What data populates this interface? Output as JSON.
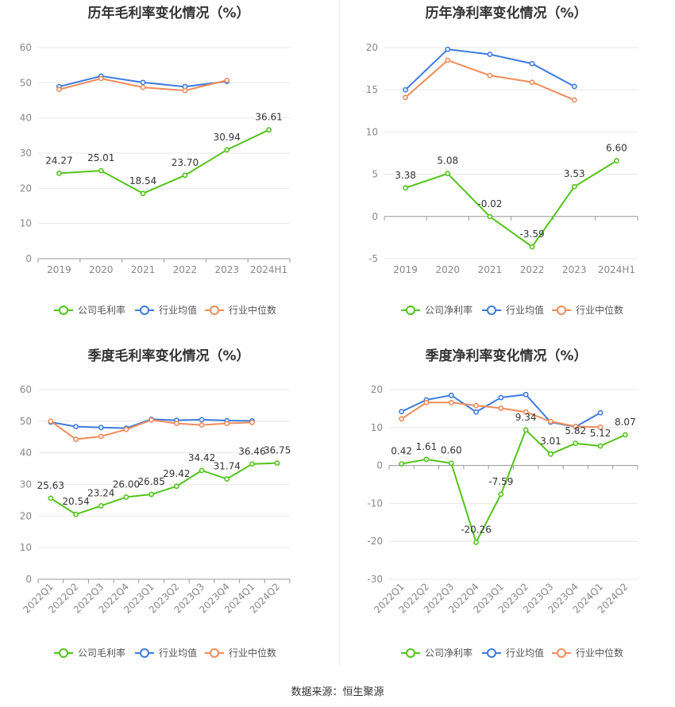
{
  "source": "数据来源：恒生聚源",
  "colors": {
    "company": "#52c41a",
    "industry_avg": "#3d7be0",
    "industry_median": "#f08c5a",
    "grid": "#e8e8e8",
    "axis": "#999999"
  },
  "chart_data": [
    {
      "type": "line",
      "title": "历年毛利率变化情况（%）",
      "categories": [
        "2019",
        "2020",
        "2021",
        "2022",
        "2023",
        "2024H1"
      ],
      "ylim": [
        0,
        60
      ],
      "yticks": [
        0,
        10,
        20,
        30,
        40,
        50,
        60
      ],
      "rotate_x": false,
      "grid": true,
      "legend_position": "bottom",
      "series": [
        {
          "name": "公司毛利率",
          "key": "company",
          "values": [
            24.27,
            25.01,
            18.54,
            23.7,
            30.94,
            36.61
          ],
          "labels": [
            "24.27",
            "25.01",
            "18.54",
            "23.70",
            "30.94",
            "36.61"
          ]
        },
        {
          "name": "行业均值",
          "key": "industry_avg",
          "values": [
            48.9,
            51.9,
            50.1,
            48.9,
            50.4,
            null
          ]
        },
        {
          "name": "行业中位数",
          "key": "industry_median",
          "values": [
            48.1,
            51.2,
            48.7,
            47.8,
            50.7,
            null
          ]
        }
      ]
    },
    {
      "type": "line",
      "title": "历年净利率变化情况（%）",
      "categories": [
        "2019",
        "2020",
        "2021",
        "2022",
        "2023",
        "2024H1"
      ],
      "ylim": [
        -5,
        20
      ],
      "yticks": [
        -5,
        0,
        5,
        10,
        15,
        20
      ],
      "rotate_x": false,
      "grid": true,
      "legend_position": "bottom",
      "series": [
        {
          "name": "公司净利率",
          "key": "company",
          "values": [
            3.38,
            5.08,
            -0.02,
            -3.59,
            3.53,
            6.6
          ],
          "labels": [
            "3.38",
            "5.08",
            "-0.02",
            "-3.59",
            "3.53",
            "6.60"
          ]
        },
        {
          "name": "行业均值",
          "key": "industry_avg",
          "values": [
            15.0,
            19.8,
            19.2,
            18.1,
            15.4,
            null
          ]
        },
        {
          "name": "行业中位数",
          "key": "industry_median",
          "values": [
            14.1,
            18.5,
            16.7,
            15.9,
            13.8,
            null
          ]
        }
      ]
    },
    {
      "type": "line",
      "title": "季度毛利率变化情况（%）",
      "categories": [
        "2022Q1",
        "2022Q2",
        "2022Q3",
        "2022Q4",
        "2023Q1",
        "2023Q2",
        "2023Q3",
        "2023Q4",
        "2024Q1",
        "2024Q2"
      ],
      "ylim": [
        0,
        60
      ],
      "yticks": [
        0,
        10,
        20,
        30,
        40,
        50,
        60
      ],
      "rotate_x": true,
      "grid": true,
      "legend_position": "bottom",
      "series": [
        {
          "name": "公司毛利率",
          "key": "company",
          "values": [
            25.63,
            20.54,
            23.24,
            26.0,
            26.85,
            29.42,
            34.42,
            31.74,
            36.46,
            36.75
          ],
          "labels": [
            "25.63",
            "20.54",
            "23.24",
            "26.00",
            "26.85",
            "29.42",
            "34.42",
            "31.74",
            "36.46",
            "36.75"
          ]
        },
        {
          "name": "行业均值",
          "key": "industry_avg",
          "values": [
            49.7,
            48.3,
            48.0,
            47.8,
            50.6,
            50.3,
            50.5,
            50.2,
            50.1,
            null
          ]
        },
        {
          "name": "行业中位数",
          "key": "industry_median",
          "values": [
            50.0,
            44.3,
            45.2,
            47.4,
            50.4,
            49.3,
            48.8,
            49.3,
            49.6,
            null
          ]
        }
      ]
    },
    {
      "type": "line",
      "title": "季度净利率变化情况（%）",
      "categories": [
        "2022Q1",
        "2022Q2",
        "2022Q3",
        "2022Q4",
        "2023Q1",
        "2023Q2",
        "2023Q3",
        "2023Q4",
        "2024Q1",
        "2024Q2"
      ],
      "ylim": [
        -30,
        20
      ],
      "yticks": [
        -30,
        -20,
        -10,
        0,
        10,
        20
      ],
      "rotate_x": true,
      "grid": true,
      "legend_position": "bottom",
      "series": [
        {
          "name": "公司净利率",
          "key": "company",
          "values": [
            0.42,
            1.61,
            0.6,
            -20.26,
            -7.59,
            9.34,
            3.01,
            5.82,
            5.12,
            8.07
          ],
          "labels": [
            "0.42",
            "1.61",
            "0.60",
            "-20.26",
            "-7.59",
            "9.34",
            "3.01",
            "5.82",
            "5.12",
            "8.07"
          ]
        },
        {
          "name": "行业均值",
          "key": "industry_avg",
          "values": [
            14.2,
            17.3,
            18.5,
            14.1,
            17.9,
            18.7,
            11.4,
            10.2,
            13.9,
            null
          ]
        },
        {
          "name": "行业中位数",
          "key": "industry_median",
          "values": [
            12.3,
            16.6,
            16.6,
            15.8,
            15.1,
            14.1,
            11.6,
            10.3,
            10.1,
            null
          ]
        }
      ]
    }
  ]
}
